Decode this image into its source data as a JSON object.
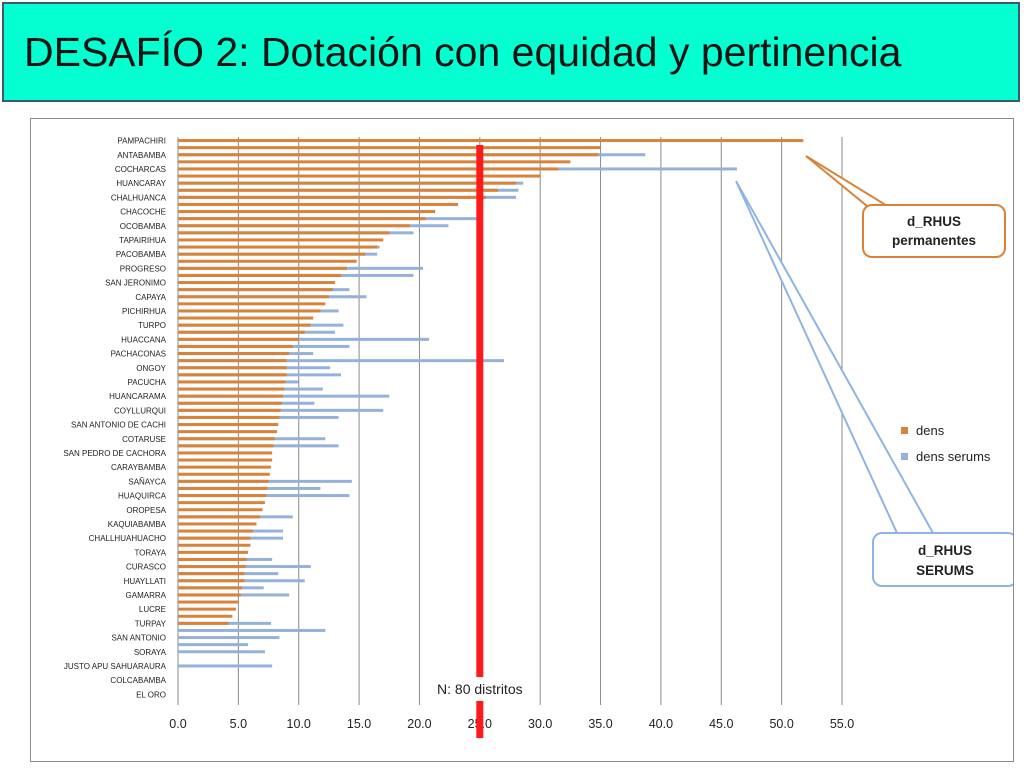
{
  "title": "DESAFÍO 2: Dotación con equidad y pertinencia",
  "colors": {
    "title_bg": "#05ffd0",
    "dens": "#d9823a",
    "dens_serums": "#95b1d9",
    "reference_line": "#ff1a1a",
    "callout_orange": "#d9823a",
    "callout_blue": "#8fb4e3"
  },
  "callouts": {
    "permanentes": {
      "line1": "d_RHUS",
      "line2": "permanentes"
    },
    "serums": {
      "line1": "d_RHUS",
      "line2": "SERUMS"
    }
  },
  "reference": {
    "value": 25.0,
    "label": "N: 80 distritos"
  },
  "chart_data": {
    "type": "bar",
    "orientation": "horizontal",
    "xlim": [
      0,
      55
    ],
    "x_ticks": [
      "0.0",
      "5.0",
      "10.0",
      "15.0",
      "20.0",
      "25.0",
      "30.0",
      "35.0",
      "40.0",
      "45.0",
      "50.0",
      "55.0"
    ],
    "grid": "vertical",
    "legend_position": "right",
    "categories": [
      "PAMPACHIRI",
      "",
      "ANTABAMBA",
      "",
      "COCHARCAS",
      "",
      "HUANCARAY",
      "",
      "CHALHUANCA",
      "",
      "CHACOCHE",
      "",
      "OCOBAMBA",
      "",
      "TAPAIRIHUA",
      "",
      "PACOBAMBA",
      "",
      "PROGRESO",
      "",
      "SAN JERONIMO",
      "",
      "CAPAYA",
      "",
      "PICHIRHUA",
      "",
      "TURPO",
      "",
      "HUACCANA",
      "",
      "PACHACONAS",
      "",
      "ONGOY",
      "",
      "PACUCHA",
      "",
      "HUANCARAMA",
      "",
      "COYLLURQUI",
      "",
      "SAN ANTONIO DE CACHI",
      "",
      "COTARUSE",
      "",
      "SAN PEDRO DE CACHORA",
      "",
      "CARAYBAMBA",
      "",
      "SAÑAYCA",
      "",
      "HUAQUIRCA",
      "",
      "OROPESA",
      "",
      "KAQUIABAMBA",
      "",
      "CHALLHUAHUACHO",
      "",
      "TORAYA",
      "",
      "CURASCO",
      "",
      "HUAYLLATI",
      "",
      "GAMARRA",
      "",
      "LUCRE",
      "",
      "TURPAY",
      "",
      "SAN ANTONIO",
      "",
      "SORAYA",
      "",
      "JUSTO APU SAHUARAURA",
      "",
      "COLCABAMBA",
      "",
      "EL ORO",
      ""
    ],
    "series": [
      {
        "name": "dens",
        "values": [
          51.8,
          35.0,
          34.8,
          32.5,
          31.5,
          30.0,
          28.0,
          26.5,
          25.5,
          23.2,
          21.3,
          20.5,
          19.2,
          17.5,
          17.0,
          16.5,
          15.5,
          14.8,
          14.0,
          13.5,
          13.0,
          12.8,
          12.5,
          12.2,
          11.8,
          11.2,
          11.0,
          10.5,
          10.0,
          9.5,
          9.2,
          9.0,
          9.0,
          9.0,
          8.9,
          8.8,
          8.7,
          8.6,
          8.5,
          8.4,
          8.3,
          8.2,
          8.0,
          7.9,
          7.8,
          7.8,
          7.7,
          7.6,
          7.5,
          7.4,
          7.3,
          7.2,
          7.0,
          6.8,
          6.5,
          6.2,
          6.0,
          6.0,
          5.8,
          5.7,
          5.6,
          5.5,
          5.5,
          5.3,
          5.2,
          5.0,
          4.8,
          4.5,
          4.2,
          0,
          0,
          0,
          0,
          0,
          0,
          0,
          0,
          0,
          0,
          0
        ]
      },
      {
        "name": "dens serums",
        "values": [
          0,
          0,
          38.7,
          0,
          46.3,
          0,
          28.6,
          28.2,
          28.0,
          0,
          0,
          25.0,
          22.4,
          19.5,
          0,
          16.7,
          16.5,
          0,
          20.3,
          19.5,
          0,
          14.2,
          15.6,
          0,
          13.3,
          0,
          13.7,
          13.0,
          20.8,
          14.2,
          11.2,
          27.0,
          12.6,
          13.5,
          10.0,
          12.0,
          17.5,
          11.3,
          17.0,
          13.3,
          0,
          0,
          12.2,
          13.3,
          0,
          0,
          0,
          0,
          14.4,
          11.8,
          14.2,
          0,
          0,
          9.5,
          0,
          8.7,
          8.7,
          0,
          0,
          7.8,
          11.0,
          8.3,
          10.5,
          7.1,
          9.2,
          0,
          0,
          0,
          7.7,
          12.2,
          8.4,
          5.8,
          7.2,
          0,
          7.8,
          0,
          0,
          0,
          0,
          0
        ]
      }
    ]
  }
}
